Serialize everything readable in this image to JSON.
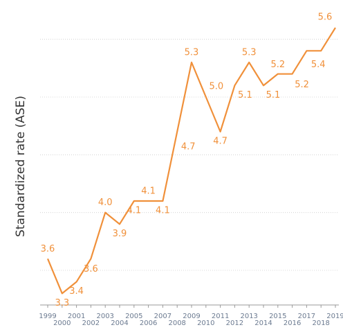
{
  "chart_data": {
    "type": "line",
    "y_label": "Standardized rate (ASE)",
    "x": [
      "1999",
      "2000",
      "2001",
      "2002",
      "2003",
      "2004",
      "2005",
      "2006",
      "2007",
      "2008",
      "2009",
      "2010",
      "2011",
      "2012",
      "2013",
      "2014",
      "2015",
      "2016",
      "2017",
      "2018",
      "2019"
    ],
    "series": [
      {
        "name": null,
        "color": "#f0903a",
        "values": [
          3.6,
          3.3,
          3.4,
          3.6,
          4.0,
          3.9,
          4.1,
          4.1,
          4.1,
          4.7,
          5.3,
          5.0,
          4.7,
          5.1,
          5.3,
          5.1,
          5.2,
          5.2,
          5.4,
          5.4,
          5.6
        ],
        "value_labels": [
          "3.6",
          "3.3",
          "3.4",
          "3.6",
          "4.0",
          "3.9",
          "4.1",
          "4.1",
          "4.1",
          "4.7",
          "5.3",
          "5.0",
          "4.7",
          "5.1",
          "5.3",
          "5.1",
          "5.2",
          "5.2",
          null,
          "5.4",
          "5.6"
        ]
      }
    ],
    "ylim": [
      3.2,
      5.75
    ],
    "yticks": [
      3.5,
      4.0,
      4.5,
      5.0,
      5.5
    ],
    "grid": true
  }
}
